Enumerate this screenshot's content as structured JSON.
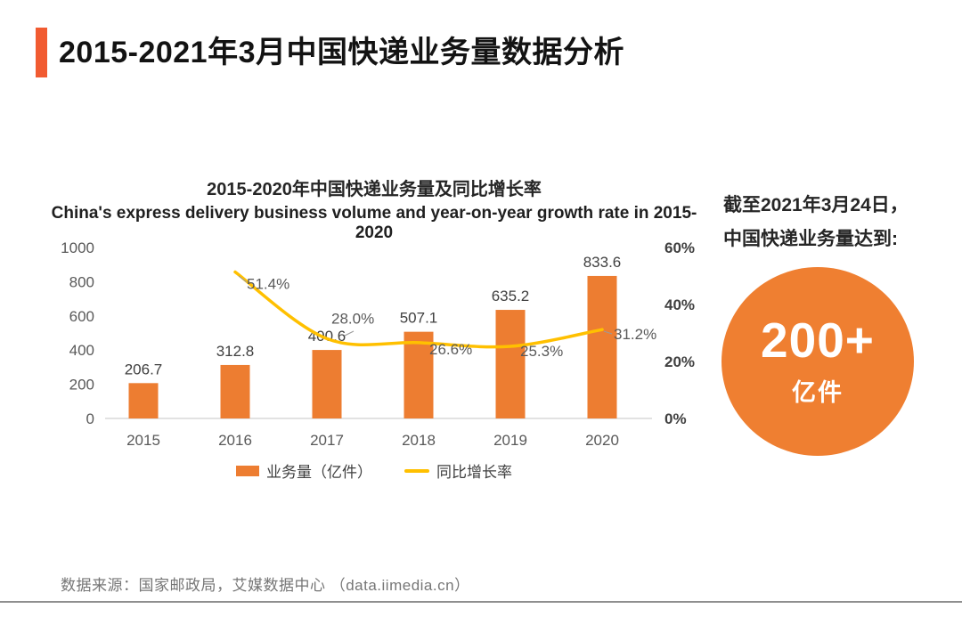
{
  "header": {
    "title": "2015-2021年3月中国快递业务量数据分析"
  },
  "chart_data": {
    "type": "bar",
    "combo": "bar+line",
    "title": "2015-2020年中国快递业务量及同比增长率",
    "subtitle": "China's express delivery business volume and year-on-year growth rate in 2015-2020",
    "categories": [
      "2015",
      "2016",
      "2017",
      "2018",
      "2019",
      "2020"
    ],
    "series": [
      {
        "name": "业务量（亿件）",
        "type": "bar",
        "axis": "left",
        "color": "#ed7d31",
        "values": [
          206.7,
          312.8,
          400.6,
          507.1,
          635.2,
          833.6
        ],
        "labels": [
          "206.7",
          "312.8",
          "400.6",
          "507.1",
          "635.2",
          "833.6"
        ]
      },
      {
        "name": "同比增长率",
        "type": "line",
        "axis": "right",
        "color": "#ffc000",
        "values": [
          null,
          51.4,
          28.0,
          26.6,
          25.3,
          31.2
        ],
        "labels": [
          "",
          "51.4%",
          "28.0%",
          "26.6%",
          "25.3%",
          "31.2%"
        ],
        "label_offsets": [
          [
            0,
            0
          ],
          [
            13,
            19
          ],
          [
            5,
            -17
          ],
          [
            12,
            13
          ],
          [
            11,
            11
          ],
          [
            13,
            11
          ]
        ]
      }
    ],
    "left_axis": {
      "min": 0,
      "max": 1000,
      "step": 200,
      "ticks": [
        "0",
        "200",
        "400",
        "600",
        "800",
        "1000"
      ]
    },
    "right_axis": {
      "min": 0,
      "max": 60,
      "step": 20,
      "ticks": [
        "0%",
        "20%",
        "40%",
        "60%"
      ]
    },
    "grid": false,
    "legend_position": "bottom-center"
  },
  "highlight": {
    "line1": "截至2021年3月24日，",
    "line2": "中国快递业务量达到:",
    "badge_value": "200+",
    "badge_unit": "亿件"
  },
  "footer": {
    "source": "数据来源：国家邮政局，艾媒数据中心 （data.iimedia.cn）"
  },
  "colors": {
    "accent_bar": "#f15b31",
    "bar": "#ed7d31",
    "line": "#ffc000",
    "badge": "#ef7f31",
    "axis_text": "#595959",
    "value_text": "#404040",
    "baseline": "#d9d9d9"
  }
}
